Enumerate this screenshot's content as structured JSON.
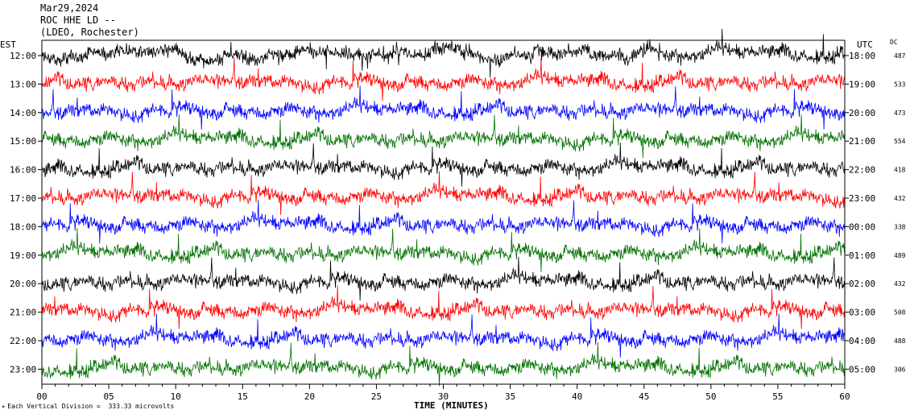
{
  "header": {
    "line1": "Mar29,2024",
    "line2": "ROC HHE LD --",
    "line3": "(LDEO, Rochester)"
  },
  "left_timezone": "EST",
  "right_timezone": "UTC",
  "dc_label": "DC",
  "footnote": "Each Vertical Division =  333.33 microvolts",
  "footnote_icon": "small-mark-icon",
  "colors": {
    "black": "#000000",
    "red": "#ff0000",
    "blue": "#0000ff",
    "green": "#007000"
  },
  "chart_data": {
    "type": "line",
    "title": "",
    "xlabel": "TIME (MINUTES)",
    "xlim": [
      0,
      60
    ],
    "x_ticks": [
      "00",
      "05",
      "10",
      "15",
      "20",
      "25",
      "30",
      "35",
      "40",
      "45",
      "50",
      "55",
      "60"
    ],
    "x_tick_values": [
      0,
      5,
      10,
      15,
      20,
      25,
      30,
      35,
      40,
      45,
      50,
      55,
      60
    ],
    "series": [
      {
        "est": "12:00",
        "utc": "18:00",
        "dc": "487",
        "color": "#000000"
      },
      {
        "est": "13:00",
        "utc": "19:00",
        "dc": "533",
        "color": "#ff0000"
      },
      {
        "est": "14:00",
        "utc": "20:00",
        "dc": "473",
        "color": "#0000ff"
      },
      {
        "est": "15:00",
        "utc": "21:00",
        "dc": "554",
        "color": "#007000"
      },
      {
        "est": "16:00",
        "utc": "22:00",
        "dc": "418",
        "color": "#000000"
      },
      {
        "est": "17:00",
        "utc": "23:00",
        "dc": "432",
        "color": "#ff0000"
      },
      {
        "est": "18:00",
        "utc": "00:00",
        "dc": "338",
        "color": "#0000ff"
      },
      {
        "est": "19:00",
        "utc": "01:00",
        "dc": "489",
        "color": "#007000"
      },
      {
        "est": "20:00",
        "utc": "02:00",
        "dc": "432",
        "color": "#000000"
      },
      {
        "est": "21:00",
        "utc": "03:00",
        "dc": "508",
        "color": "#ff0000"
      },
      {
        "est": "22:00",
        "utc": "04:00",
        "dc": "488",
        "color": "#0000ff"
      },
      {
        "est": "23:00",
        "utc": "05:00",
        "dc": "306",
        "color": "#007000"
      }
    ]
  }
}
